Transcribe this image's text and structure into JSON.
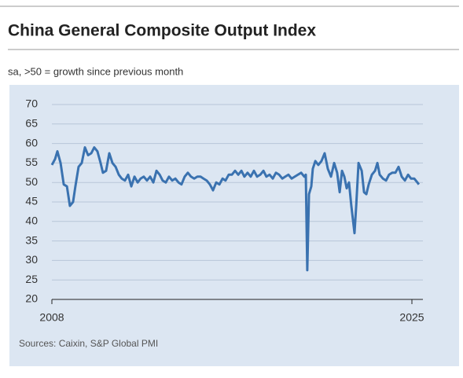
{
  "chart_data": {
    "type": "line",
    "title": "China General Composite Output Index",
    "subtitle": "sa, >50 = growth since previous month",
    "source": "Sources: Caixin, S&P Global PMI",
    "xlim": [
      2008,
      2025.52
    ],
    "xticks": [
      2008,
      2025
    ],
    "ylim": [
      20,
      70
    ],
    "yticks": [
      20,
      25,
      30,
      35,
      40,
      45,
      50,
      55,
      60,
      65,
      70
    ],
    "grid": true,
    "series": [
      {
        "color": "#3a72b0",
        "x": [
          2008.0,
          2008.15,
          2008.26,
          2008.41,
          2008.56,
          2008.71,
          2008.85,
          2009.0,
          2009.11,
          2009.26,
          2009.41,
          2009.56,
          2009.71,
          2009.86,
          2010.0,
          2010.15,
          2010.3,
          2010.41,
          2010.56,
          2010.71,
          2010.86,
          2011.01,
          2011.16,
          2011.3,
          2011.45,
          2011.6,
          2011.75,
          2011.9,
          2012.05,
          2012.19,
          2012.34,
          2012.49,
          2012.64,
          2012.79,
          2012.94,
          2013.09,
          2013.23,
          2013.38,
          2013.53,
          2013.68,
          2013.83,
          2013.98,
          2014.12,
          2014.27,
          2014.42,
          2014.57,
          2014.72,
          2014.87,
          2015.02,
          2015.16,
          2015.31,
          2015.46,
          2015.61,
          2015.76,
          2015.91,
          2016.06,
          2016.2,
          2016.35,
          2016.5,
          2016.65,
          2016.8,
          2016.95,
          2017.09,
          2017.24,
          2017.39,
          2017.54,
          2017.69,
          2017.84,
          2017.99,
          2018.13,
          2018.28,
          2018.43,
          2018.58,
          2018.73,
          2018.88,
          2019.02,
          2019.17,
          2019.32,
          2019.47,
          2019.62,
          2019.77,
          2019.92,
          2019.99,
          2020.06,
          2020.14,
          2020.25,
          2020.32,
          2020.44,
          2020.58,
          2020.73,
          2020.88,
          2021.03,
          2021.18,
          2021.33,
          2021.47,
          2021.59,
          2021.7,
          2021.81,
          2021.92,
          2022.03,
          2022.14,
          2022.29,
          2022.37,
          2022.48,
          2022.63,
          2022.74,
          2022.85,
          2022.96,
          2023.11,
          2023.26,
          2023.37,
          2023.48,
          2023.63,
          2023.78,
          2023.92,
          2024.07,
          2024.22,
          2024.37,
          2024.52,
          2024.67,
          2024.82,
          2024.96,
          2025.11,
          2025.26,
          2025.33
        ],
        "values": [
          54.5,
          56,
          58,
          55,
          49.5,
          49,
          44,
          45,
          49,
          54,
          55,
          59,
          57,
          57.5,
          59,
          58,
          55,
          52.5,
          53,
          57.5,
          55,
          54,
          52,
          51,
          50.5,
          52,
          49,
          51.5,
          50,
          51,
          51.5,
          50.5,
          51.5,
          50,
          53,
          52,
          50.5,
          50,
          51.5,
          50.5,
          51,
          50,
          49.5,
          51.5,
          52.5,
          51.5,
          51,
          51.5,
          51.5,
          51,
          50.5,
          49.5,
          48,
          50,
          49.5,
          51,
          50.5,
          52,
          52,
          53,
          52,
          53,
          51.5,
          52.5,
          51.5,
          53,
          51.5,
          52,
          53,
          51.5,
          52,
          51,
          52.5,
          52,
          51,
          51.5,
          52,
          51,
          51.5,
          52,
          52.5,
          51.5,
          52,
          27.5,
          47,
          49,
          53.5,
          55.5,
          54.5,
          55.5,
          57.5,
          53.5,
          51.5,
          55,
          52.5,
          47.5,
          53,
          51.5,
          48.5,
          50,
          44,
          37,
          44,
          55,
          53,
          47.5,
          47,
          49.5,
          52,
          53,
          55,
          52,
          51,
          50.5,
          52,
          52.5,
          52.5,
          54,
          51.5,
          50.5,
          52,
          51,
          51,
          50,
          49.5
        ]
      }
    ]
  }
}
